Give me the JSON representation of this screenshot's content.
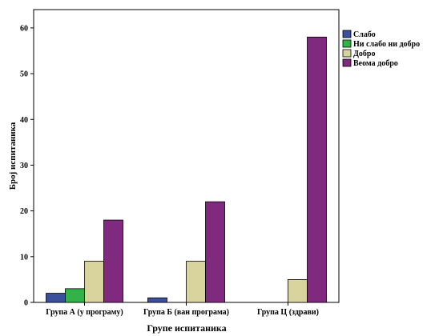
{
  "chart_data": {
    "type": "bar",
    "title": "",
    "xlabel": "Групе испитаника",
    "ylabel": "Број испитаника",
    "categories": [
      "Група А (у програму)",
      "Група Б (ван програма)",
      "Група Ц (здрави)"
    ],
    "series": [
      {
        "name": "Слабо",
        "color": "#3b4f9c",
        "values": [
          2,
          1,
          0
        ]
      },
      {
        "name": "Ни слабо ни добро",
        "color": "#33b24a",
        "values": [
          3,
          0,
          0
        ]
      },
      {
        "name": "Добро",
        "color": "#d9d49e",
        "values": [
          9,
          9,
          5
        ]
      },
      {
        "name": "Веома добро",
        "color": "#7f2a7e",
        "values": [
          18,
          22,
          58
        ]
      }
    ],
    "ylim": [
      0,
      64
    ],
    "yticks": [
      0,
      10,
      20,
      30,
      40,
      50,
      60
    ],
    "grid": false,
    "legend": "top-right"
  }
}
